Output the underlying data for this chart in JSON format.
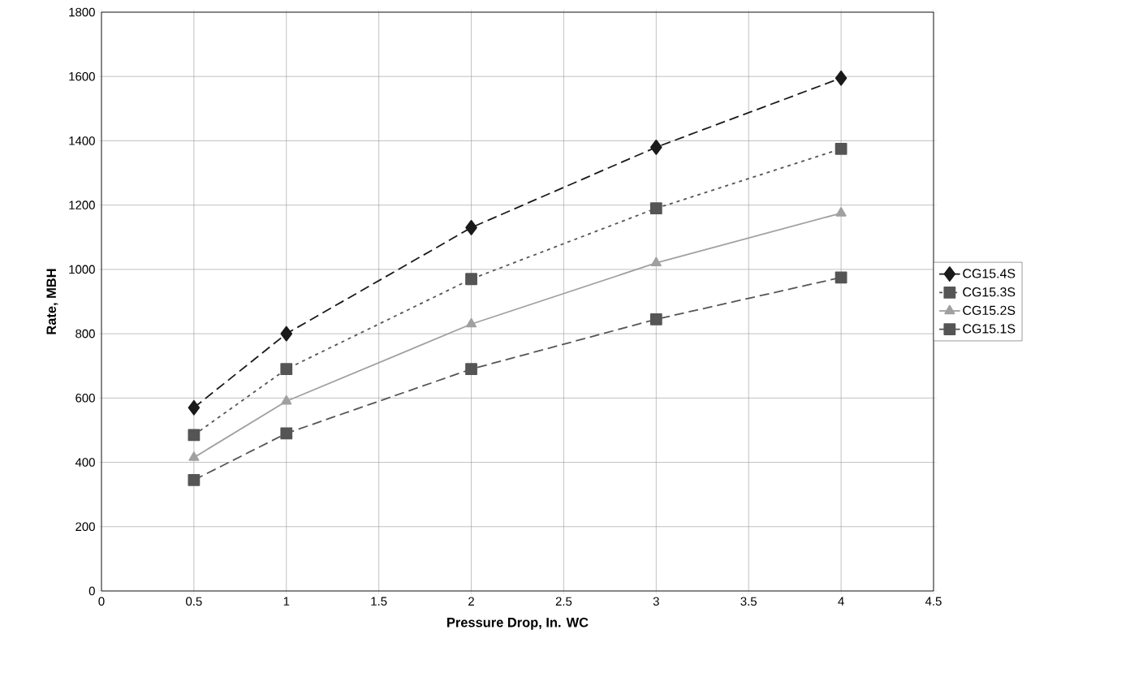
{
  "chart_data": {
    "type": "line",
    "xlabel": "Pressure Drop, In. WC",
    "ylabel": "Rate, MBH",
    "xlim": [
      0,
      4.5
    ],
    "xticks": [
      0,
      0.5,
      1,
      1.5,
      2,
      2.5,
      3,
      3.5,
      4,
      4.5
    ],
    "ylim": [
      0,
      1800
    ],
    "yticks": [
      0,
      200,
      400,
      600,
      800,
      1000,
      1200,
      1400,
      1600,
      1800
    ],
    "grid": true,
    "legend": "right",
    "series": [
      {
        "name": "CG15.4S",
        "color": "#1a1a1a",
        "marker": "diamond",
        "line_style": "dashed",
        "x": [
          0.5,
          1,
          2,
          3,
          4
        ],
        "values": [
          570,
          800,
          1130,
          1380,
          1595
        ]
      },
      {
        "name": "CG15.3S",
        "color": "#555555",
        "marker": "square",
        "line_style": "dotted",
        "x": [
          0.5,
          1,
          2,
          3,
          4
        ],
        "values": [
          485,
          690,
          970,
          1190,
          1375
        ]
      },
      {
        "name": "CG15.2S",
        "color": "#a0a0a0",
        "marker": "triangle",
        "line_style": "solid",
        "x": [
          0.5,
          1,
          2,
          3,
          4
        ],
        "values": [
          415,
          590,
          830,
          1020,
          1175
        ]
      },
      {
        "name": "CG15.1S",
        "color": "#555555",
        "marker": "square",
        "line_style": "dashed",
        "x": [
          0.5,
          1,
          2,
          3,
          4
        ],
        "values": [
          345,
          490,
          690,
          845,
          975
        ]
      }
    ]
  }
}
